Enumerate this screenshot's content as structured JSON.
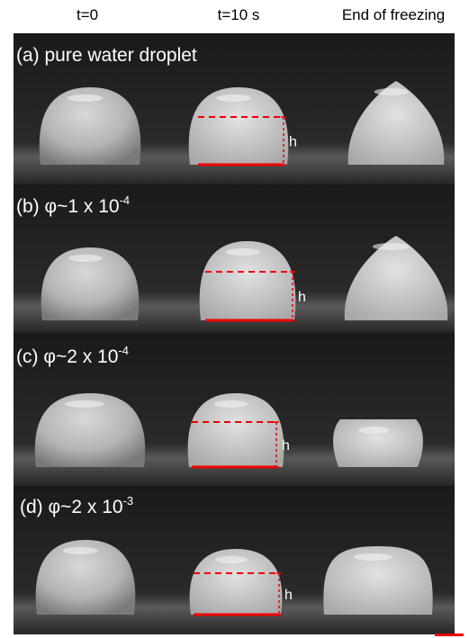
{
  "columns": [
    "t=0",
    "t=10 s",
    "End of freezing"
  ],
  "rows": [
    {
      "label": "(a) pure water droplet",
      "height_label": "h"
    },
    {
      "label": "(b) φ~1 x 10",
      "exponent": "-4",
      "height_label": "h"
    },
    {
      "label": "(c) φ~2 x 10",
      "exponent": "-4",
      "height_label": "h"
    },
    {
      "label": "(d) φ~2 x 10",
      "exponent": "-3",
      "height_label": "h"
    }
  ]
}
